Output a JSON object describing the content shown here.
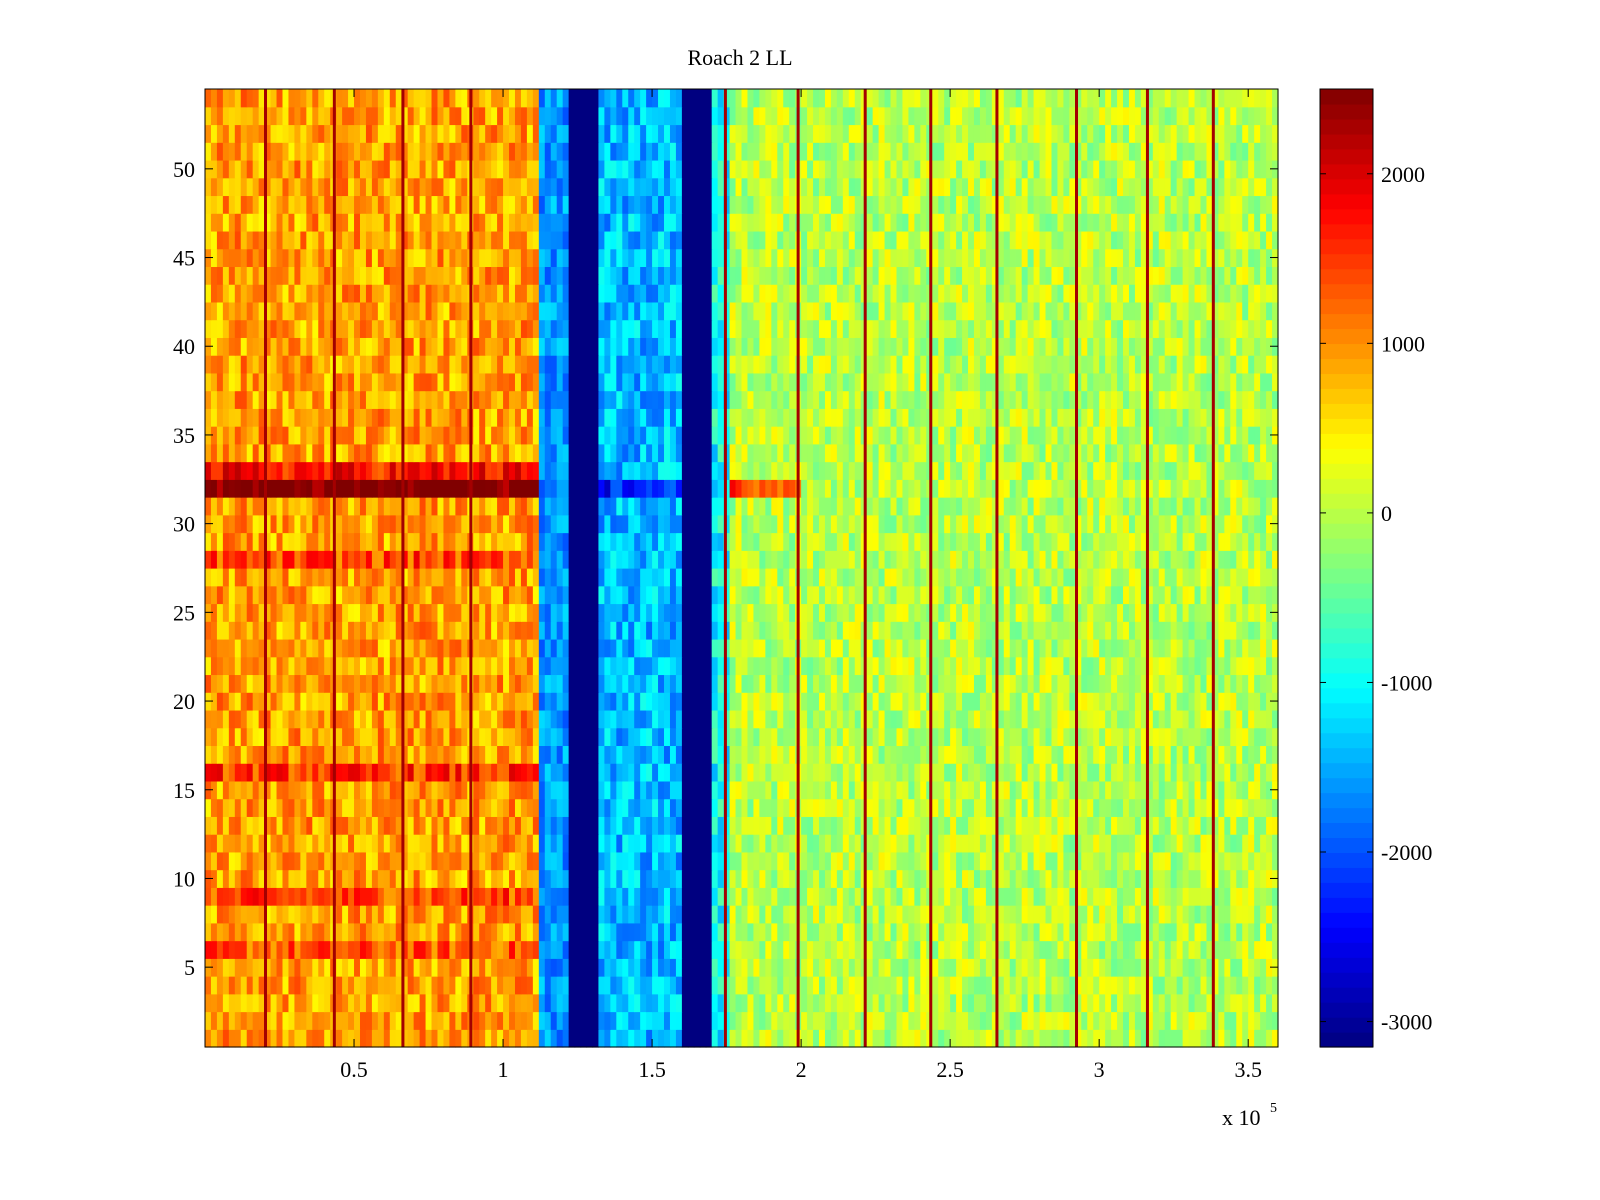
{
  "chart_data": {
    "type": "heatmap",
    "title": "Roach 2 LL",
    "xlabel": "",
    "ylabel": "",
    "x_exponent_label": "x 10",
    "x_exponent": "5",
    "xlim": [
      0,
      360000
    ],
    "ylim": [
      0.5,
      54.5
    ],
    "rows": 54,
    "x_bin": 2000,
    "xticks": [
      50000,
      100000,
      150000,
      200000,
      250000,
      300000,
      350000
    ],
    "xtick_labels": [
      "0.5",
      "1",
      "1.5",
      "2",
      "2.5",
      "3",
      "3.5"
    ],
    "yticks": [
      5,
      10,
      15,
      20,
      25,
      30,
      35,
      40,
      45,
      50
    ],
    "ytick_labels": [
      "5",
      "10",
      "15",
      "20",
      "25",
      "30",
      "35",
      "40",
      "45",
      "50"
    ],
    "colormap": "jet",
    "clim": [
      -3150,
      2500
    ],
    "colorbar_ticks": [
      2000,
      1000,
      0,
      -1000,
      -2000,
      -3000
    ],
    "colorbar_tick_labels": [
      "2000",
      "1000",
      "0",
      "-1000",
      "-2000",
      "-3000"
    ],
    "regions": [
      {
        "x_start": 0,
        "x_end": 112000,
        "mean": 900,
        "spread": 500
      },
      {
        "x_start": 112000,
        "x_end": 121700,
        "mean": -1600,
        "spread": 400
      },
      {
        "x_start": 121700,
        "x_end": 132400,
        "mean": -3150,
        "spread": 0
      },
      {
        "x_start": 132400,
        "x_end": 159500,
        "mean": -1400,
        "spread": 500
      },
      {
        "x_start": 159500,
        "x_end": 170200,
        "mean": -3150,
        "spread": 0
      },
      {
        "x_start": 170200,
        "x_end": 175200,
        "mean": -1000,
        "spread": 500
      },
      {
        "x_start": 175200,
        "x_end": 360000,
        "mean": 0,
        "spread": 450
      }
    ],
    "row_offsets": [
      {
        "row": 32,
        "x_end": 112000,
        "offset": 1700
      },
      {
        "row": 32,
        "x_start": 132400,
        "x_end": 159500,
        "offset": -900
      },
      {
        "row": 32,
        "x_start": 175200,
        "x_end": 200000,
        "offset": 1500
      },
      {
        "row": 33,
        "x_end": 112000,
        "offset": 800
      },
      {
        "row": 28,
        "x_end": 112000,
        "offset": 500
      },
      {
        "row": 16,
        "x_end": 112000,
        "offset": 600
      },
      {
        "row": 9,
        "x_end": 112000,
        "offset": 500
      },
      {
        "row": 6,
        "x_end": 112000,
        "offset": 400
      }
    ],
    "hot_columns": [
      20300,
      43400,
      66400,
      89200,
      174600,
      199000,
      221500,
      243500,
      265700,
      292400,
      316200,
      338300
    ],
    "hot_value": 2300
  }
}
